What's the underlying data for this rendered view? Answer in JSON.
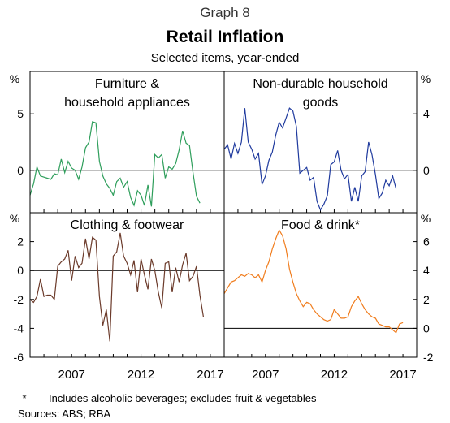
{
  "header": {
    "graph_number": "Graph 8",
    "title": "Retail Inflation",
    "subtitle": "Selected items, year-ended"
  },
  "axes": {
    "unit_label": "%",
    "x_ticks": [
      "2007",
      "2012",
      "2017"
    ]
  },
  "footnotes": {
    "marker": "*",
    "note": "Includes alcoholic beverages; excludes fruit & vegetables",
    "sources": "Sources:   ABS; RBA"
  },
  "chart_data": [
    {
      "type": "line",
      "title": "Furniture & household appliances",
      "title_lines": [
        "Furniture &",
        "household appliances"
      ],
      "color": "#2E9E5B",
      "ylim": [
        -3.75,
        8.75
      ],
      "yticks": [
        0,
        5
      ],
      "ytick_labels": [
        "0",
        "5"
      ],
      "axis_side": "left",
      "x_start": 2004.0,
      "x_step": 0.25,
      "values": [
        -2.2,
        -1.2,
        0.3,
        -0.5,
        -0.6,
        -0.7,
        -0.8,
        -0.3,
        -0.4,
        1.0,
        -0.2,
        0.8,
        0.2,
        0.0,
        -0.8,
        0.3,
        2.0,
        2.5,
        4.3,
        4.2,
        0.8,
        -0.5,
        -1.2,
        -1.6,
        -2.2,
        -1.0,
        -0.7,
        -1.5,
        -1.0,
        -2.4,
        -3.1,
        -1.8,
        -2.2,
        -3.1,
        -1.3,
        -3.2,
        1.4,
        1.1,
        1.4,
        -0.7,
        0.3,
        0.1,
        0.6,
        1.8,
        3.5,
        2.4,
        2.2,
        -0.2,
        -2.3,
        -2.9
      ]
    },
    {
      "type": "line",
      "title": "Non-durable household goods",
      "title_lines": [
        "Non-durable household",
        "goods"
      ],
      "color": "#1F3A9E",
      "ylim": [
        -3,
        7
      ],
      "yticks": [
        0,
        4
      ],
      "ytick_labels": [
        "0",
        "4"
      ],
      "axis_side": "right",
      "x_start": 2004.0,
      "x_step": 0.25,
      "values": [
        1.5,
        1.8,
        0.8,
        1.9,
        1.2,
        2.0,
        4.4,
        2.0,
        1.5,
        0.8,
        1.2,
        -1.0,
        -0.4,
        0.7,
        1.3,
        2.5,
        3.4,
        3.0,
        3.7,
        4.4,
        4.2,
        3.1,
        -0.2,
        0.0,
        0.2,
        -0.7,
        -0.5,
        -2.2,
        -2.8,
        -2.4,
        -1.8,
        0.4,
        0.6,
        1.4,
        0.0,
        -0.6,
        -0.3,
        -2.2,
        -1.2,
        -2.2,
        -0.4,
        -0.1,
        2.0,
        1.1,
        -0.3,
        -2.0,
        -1.6,
        -0.7,
        -1.1,
        -0.4,
        -1.3
      ]
    },
    {
      "type": "line",
      "title": "Clothing & footwear",
      "title_lines": [
        "Clothing & footwear"
      ],
      "color": "#6B3A2A",
      "ylim": [
        -6,
        4
      ],
      "yticks": [
        -6,
        -4,
        -2,
        0,
        2
      ],
      "ytick_labels": [
        "-6",
        "-4",
        "-2",
        "0",
        "2"
      ],
      "axis_side": "left",
      "x_start": 2004.0,
      "x_step": 0.25,
      "values": [
        -2.0,
        -2.2,
        -1.8,
        -0.6,
        -1.8,
        -1.7,
        -1.7,
        -2.0,
        0.3,
        0.6,
        0.8,
        1.4,
        -0.7,
        1.0,
        0.2,
        0.5,
        2.2,
        0.8,
        2.3,
        2.1,
        -1.8,
        -3.8,
        -2.7,
        -4.9,
        1.0,
        1.3,
        2.6,
        1.0,
        0.5,
        -0.3,
        0.7,
        -1.5,
        0.8,
        -0.3,
        -1.3,
        0.8,
        0.0,
        -1.5,
        -2.6,
        0.5,
        0.6,
        -1.5,
        0.2,
        -0.8,
        0.4,
        1.2,
        -0.7,
        -0.4,
        0.3,
        -1.7,
        -3.2
      ]
    },
    {
      "type": "line",
      "title": "Food & drink*",
      "title_lines": [
        "Food & drink*"
      ],
      "color": "#F07D1E",
      "ylim": [
        -2,
        8
      ],
      "yticks": [
        -2,
        0,
        2,
        4,
        6
      ],
      "ytick_labels": [
        "-2",
        "0",
        "2",
        "4",
        "6"
      ],
      "axis_side": "right",
      "x_start": 2004.0,
      "x_step": 0.25,
      "values": [
        2.4,
        2.8,
        3.2,
        3.3,
        3.5,
        3.7,
        3.6,
        3.8,
        3.7,
        3.5,
        3.7,
        3.2,
        4.0,
        4.6,
        5.5,
        6.2,
        6.8,
        6.4,
        5.5,
        4.1,
        3.2,
        2.4,
        1.9,
        1.5,
        1.8,
        1.7,
        1.3,
        1.0,
        0.8,
        0.6,
        0.5,
        0.6,
        1.3,
        1.0,
        0.7,
        0.7,
        0.8,
        1.5,
        1.9,
        2.2,
        1.7,
        1.3,
        1.0,
        0.8,
        0.7,
        0.3,
        0.2,
        0.1,
        0.1,
        -0.1,
        -0.3,
        0.3,
        0.4
      ]
    }
  ]
}
